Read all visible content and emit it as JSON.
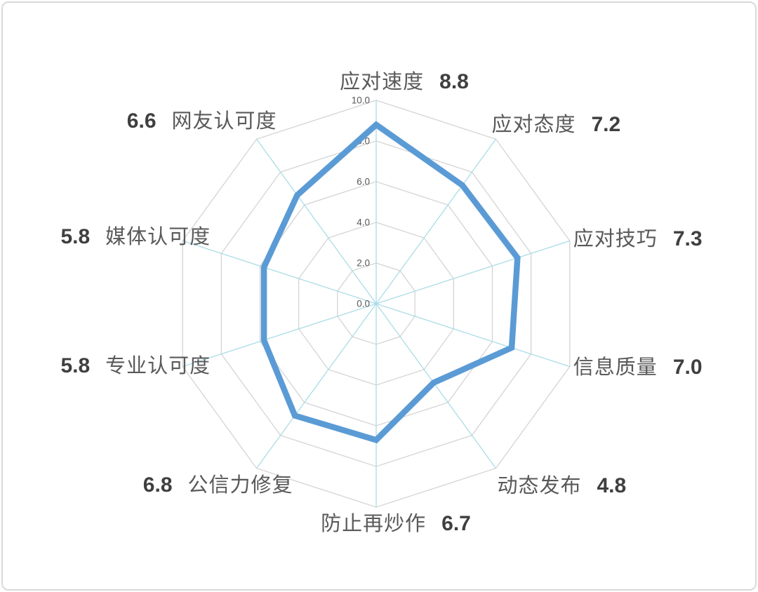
{
  "chart_data": {
    "type": "radar",
    "title": "",
    "axes": [
      {
        "label": "应对速度",
        "value": 8.8,
        "display": "8.8"
      },
      {
        "label": "应对态度",
        "value": 7.2,
        "display": "7.2"
      },
      {
        "label": "应对技巧",
        "value": 7.3,
        "display": "7.3"
      },
      {
        "label": "信息质量",
        "value": 7.0,
        "display": "7.0"
      },
      {
        "label": "动态发布",
        "value": 4.8,
        "display": "4.8"
      },
      {
        "label": "防止再炒作",
        "value": 6.7,
        "display": "6.7"
      },
      {
        "label": "公信力修复",
        "value": 6.8,
        "display": "6.8"
      },
      {
        "label": "专业认可度",
        "value": 5.8,
        "display": "5.8"
      },
      {
        "label": "媒体认可度",
        "value": 5.8,
        "display": "5.8"
      },
      {
        "label": "网友认可度",
        "value": 6.6,
        "display": "6.6"
      }
    ],
    "radial_ticks": [
      "0.0",
      "2.0",
      "4.0",
      "6.0",
      "8.0",
      "10.0"
    ],
    "rlim": [
      0,
      10
    ],
    "ring_step": 2,
    "grid": true,
    "legend_position": "none",
    "colors": {
      "series_line": "#5B9BD5",
      "grid_ring": "#D4D4D4",
      "axis_spoke": "#ABDCE8",
      "tick_text": "#595959",
      "label_text": "#595959",
      "value_text": "#3F3F3F",
      "card_border": "#D9D9D9",
      "background": "#FFFFFF"
    }
  }
}
